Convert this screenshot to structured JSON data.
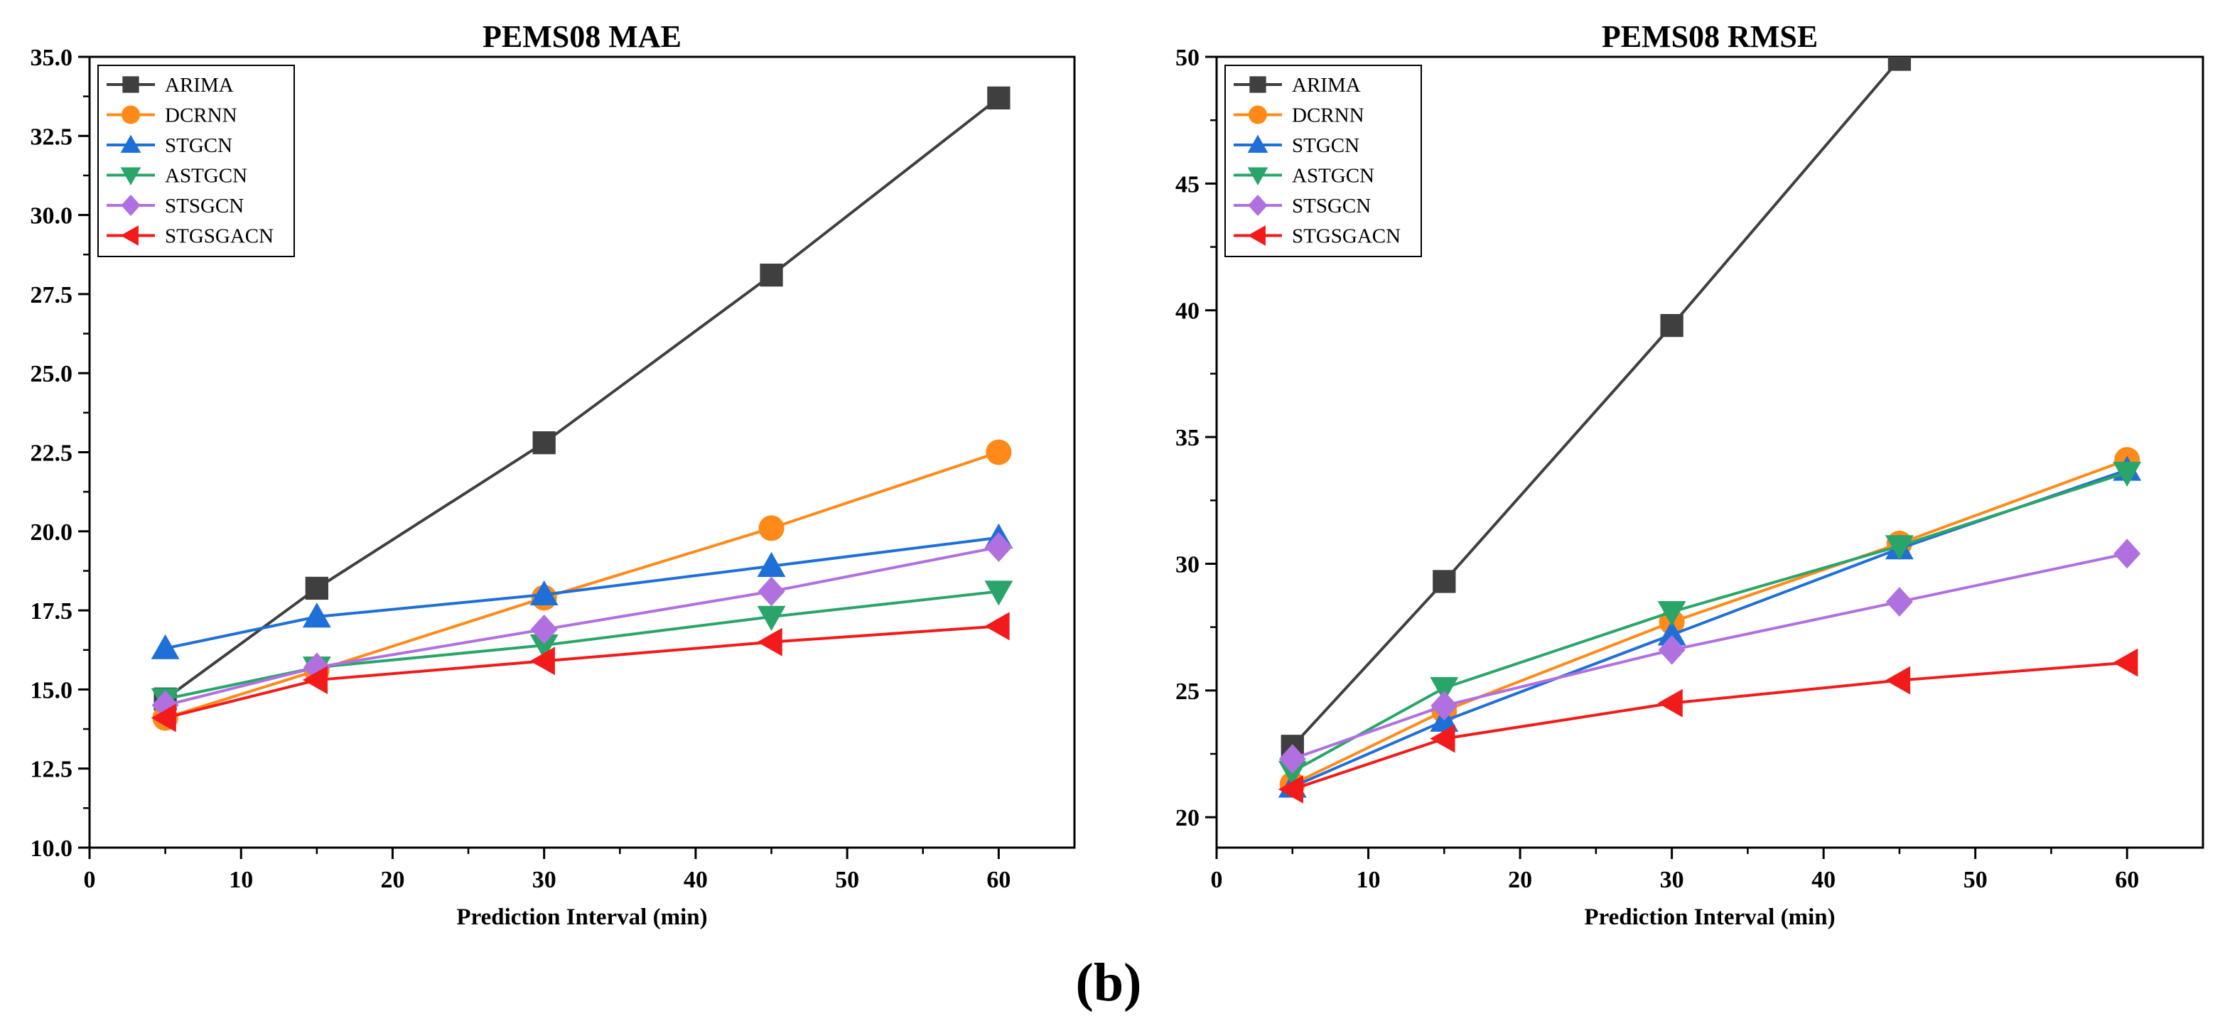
{
  "caption": "(b)",
  "series_colors": {
    "ARIMA": "#3f3f3f",
    "DCRNN": "#ff8a1a",
    "STGCN": "#1f6fd8",
    "ASTGCN": "#2aa56a",
    "STSGCN": "#b070e0",
    "STGSGACN": "#f21a1a"
  },
  "series_markers": {
    "ARIMA": "square",
    "DCRNN": "circle",
    "STGCN": "triangle-up",
    "ASTGCN": "triangle-down",
    "STSGCN": "diamond",
    "STGSGACN": "triangle-left"
  },
  "chart_data": [
    {
      "type": "line",
      "title": "PEMS08 MAE",
      "xlabel": "Prediction Interval (min)",
      "ylabel": "",
      "xlim": [
        0,
        65
      ],
      "ylim": [
        10,
        35
      ],
      "xticks": [
        0,
        10,
        20,
        30,
        40,
        50,
        60
      ],
      "xtick_labels": [
        "0",
        "10",
        "20",
        "30",
        "40",
        "50",
        "60"
      ],
      "yticks": [
        10,
        12.5,
        15,
        17.5,
        20,
        22.5,
        25,
        27.5,
        30,
        32.5,
        35
      ],
      "ytick_labels": [
        "10.0",
        "12.5",
        "15.0",
        "17.5",
        "20.0",
        "22.5",
        "25.0",
        "27.5",
        "30.0",
        "32.5",
        "35.0"
      ],
      "legend": "top-left",
      "x": [
        5,
        15,
        30,
        45,
        60
      ],
      "series": [
        {
          "name": "ARIMA",
          "values": [
            14.7,
            18.2,
            22.8,
            28.1,
            33.7
          ]
        },
        {
          "name": "DCRNN",
          "values": [
            14.1,
            15.6,
            17.9,
            20.1,
            22.5
          ]
        },
        {
          "name": "STGCN",
          "values": [
            16.3,
            17.3,
            18.0,
            18.9,
            19.8
          ]
        },
        {
          "name": "ASTGCN",
          "values": [
            14.7,
            15.7,
            16.4,
            17.3,
            18.1
          ]
        },
        {
          "name": "STSGCN",
          "values": [
            14.5,
            15.7,
            16.9,
            18.1,
            19.5
          ]
        },
        {
          "name": "STGSGACN",
          "values": [
            14.1,
            15.3,
            15.9,
            16.5,
            17.0
          ]
        }
      ]
    },
    {
      "type": "line",
      "title": "PEMS08 RMSE",
      "xlabel": "Prediction Interval (min)",
      "ylabel": "",
      "xlim": [
        0,
        65
      ],
      "ylim": [
        18.8,
        50
      ],
      "xticks": [
        0,
        10,
        20,
        30,
        40,
        50,
        60
      ],
      "xtick_labels": [
        "0",
        "10",
        "20",
        "30",
        "40",
        "50",
        "60"
      ],
      "yticks": [
        20,
        25,
        30,
        35,
        40,
        45,
        50
      ],
      "ytick_labels": [
        "20",
        "25",
        "30",
        "35",
        "40",
        "45",
        "50"
      ],
      "legend": "top-left",
      "x": [
        5,
        15,
        30,
        45,
        60
      ],
      "series": [
        {
          "name": "ARIMA",
          "values": [
            22.8,
            29.3,
            39.4,
            49.9,
            null
          ]
        },
        {
          "name": "DCRNN",
          "values": [
            21.3,
            24.2,
            27.7,
            30.8,
            34.1
          ]
        },
        {
          "name": "STGCN",
          "values": [
            21.2,
            23.8,
            27.2,
            30.6,
            33.7
          ]
        },
        {
          "name": "ASTGCN",
          "values": [
            21.8,
            25.1,
            28.1,
            30.7,
            33.6
          ]
        },
        {
          "name": "STSGCN",
          "values": [
            22.3,
            24.4,
            26.6,
            28.5,
            30.4
          ]
        },
        {
          "name": "STGSGACN",
          "values": [
            21.1,
            23.1,
            24.5,
            25.4,
            26.1
          ]
        }
      ]
    }
  ]
}
